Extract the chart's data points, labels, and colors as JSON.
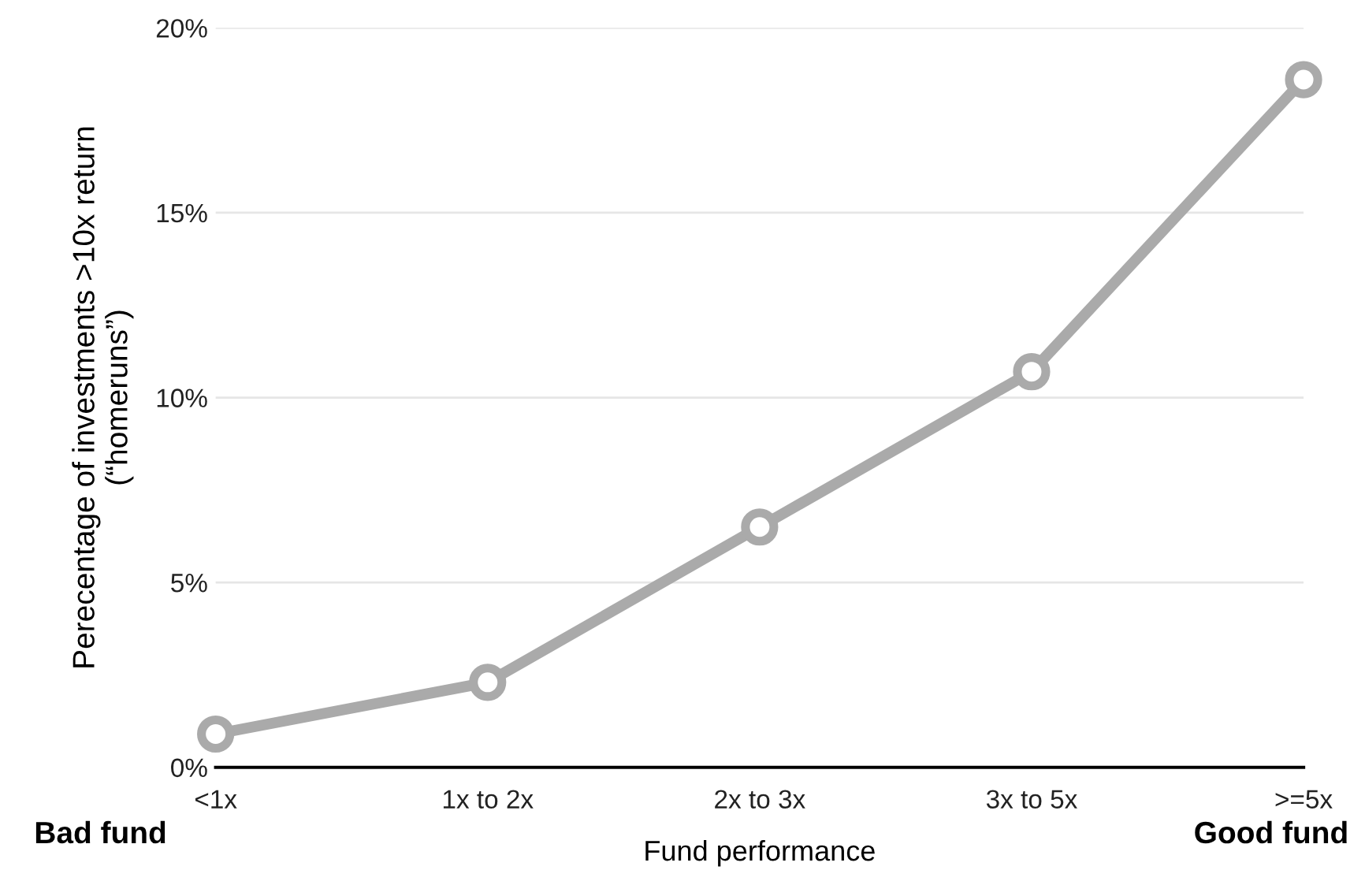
{
  "chart_data": {
    "type": "line",
    "xlabel": "Fund performance",
    "ylabel": "Perecentage of investments >10x return\n(“homeruns”)",
    "categories": [
      "<1x",
      "1x to 2x",
      "2x to 3x",
      "3x to 5x",
      ">=5x"
    ],
    "series": [
      {
        "color": "#aaaaaa",
        "values": [
          0.9,
          2.3,
          6.5,
          10.7,
          18.6
        ]
      }
    ],
    "ylim": [
      0,
      20
    ],
    "yticks": [
      {
        "value": 0,
        "label": "0%"
      },
      {
        "value": 5,
        "label": "5%"
      },
      {
        "value": 10,
        "label": "10%"
      },
      {
        "value": 15,
        "label": "15%"
      },
      {
        "value": 20,
        "label": "20%"
      }
    ],
    "grid": "y",
    "marker": "circle",
    "line_style": "solid",
    "annotations": [
      "Bad fund",
      "Good fund"
    ]
  }
}
